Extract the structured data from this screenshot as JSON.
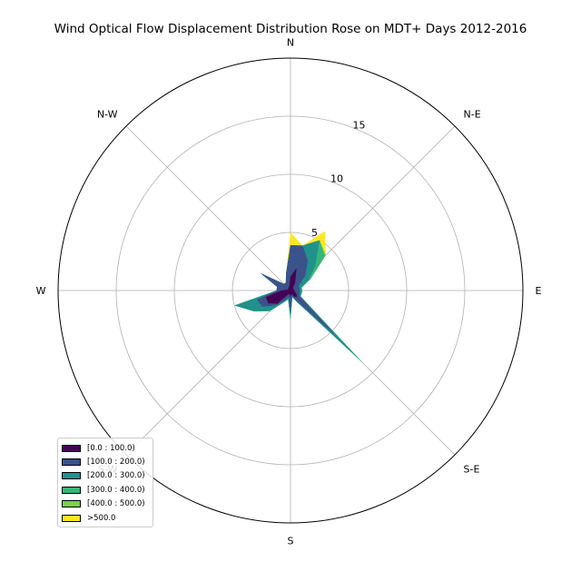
{
  "chart_data": {
    "type": "windrose",
    "title": "Wind Optical Flow Displacement Distribution Rose on MDT+ Days 2012-2016",
    "directions": [
      "N",
      "N-E",
      "E",
      "S-E",
      "S",
      "S-W",
      "W",
      "N-W"
    ],
    "sector_labels": [
      "N",
      "",
      "",
      "N-E",
      "",
      "",
      "E",
      "",
      "",
      "S-E",
      "",
      "",
      "S",
      "",
      "",
      "S-W",
      "",
      "",
      "W",
      "",
      "",
      "N-W",
      "",
      ""
    ],
    "rticks": [
      5,
      10,
      15
    ],
    "rlim": [
      0,
      20
    ],
    "grid": true,
    "legend_position": "lower-left",
    "series": [
      {
        "name": "[0.0 : 100.0)",
        "color": "#440154",
        "values": [
          1.2,
          2.0,
          0.8,
          0.3,
          0.3,
          0.3,
          0.3,
          0.4,
          0.6,
          0.8,
          0.6,
          0.3,
          0.6,
          0.3,
          0.4,
          1.6,
          2.2,
          2.2,
          0.8,
          0.3,
          0.2,
          0.3,
          0.3,
          0.4
        ]
      },
      {
        "name": "[100.0 : 200.0)",
        "color": "#3b528b",
        "values": [
          3.9,
          4.0,
          3.0,
          1.8,
          0.8,
          0.8,
          0.8,
          0.8,
          0.9,
          5.5,
          1.0,
          0.5,
          2.0,
          0.6,
          1.0,
          1.8,
          2.8,
          3.0,
          1.2,
          1.2,
          3.0,
          0.8,
          0.8,
          1.5
        ]
      },
      {
        "name": "[200.0 : 300.0)",
        "color": "#21918c",
        "values": [
          3.9,
          4.0,
          5.0,
          3.0,
          1.8,
          1.0,
          1.0,
          1.0,
          1.0,
          8.8,
          1.2,
          0.6,
          2.5,
          0.8,
          1.2,
          2.5,
          3.6,
          5.0,
          1.2,
          1.2,
          3.0,
          0.8,
          0.8,
          1.5
        ]
      },
      {
        "name": "[300.0 : 400.0)",
        "color": "#35b779",
        "values": [
          3.9,
          4.0,
          5.0,
          4.2,
          2.0,
          1.0,
          1.0,
          1.0,
          1.0,
          8.8,
          1.2,
          0.6,
          2.5,
          0.8,
          1.2,
          2.5,
          3.6,
          5.0,
          1.2,
          1.2,
          3.0,
          0.8,
          0.8,
          1.5
        ]
      },
      {
        "name": "[400.0 : 500.0)",
        "color": "#7ad151",
        "values": [
          3.9,
          4.0,
          5.0,
          4.3,
          2.0,
          1.0,
          1.0,
          1.0,
          1.0,
          8.8,
          1.2,
          0.6,
          2.5,
          0.8,
          1.2,
          2.5,
          3.6,
          5.0,
          1.2,
          1.2,
          3.0,
          0.8,
          0.8,
          1.5
        ]
      },
      {
        "name": ">500.0",
        "color": "#fde725",
        "values": [
          5.0,
          4.0,
          5.9,
          4.3,
          2.0,
          1.0,
          1.0,
          1.0,
          1.0,
          8.8,
          1.2,
          0.6,
          2.5,
          0.8,
          1.2,
          2.5,
          3.6,
          5.0,
          1.2,
          1.2,
          3.0,
          0.8,
          0.8,
          1.5
        ]
      }
    ]
  }
}
